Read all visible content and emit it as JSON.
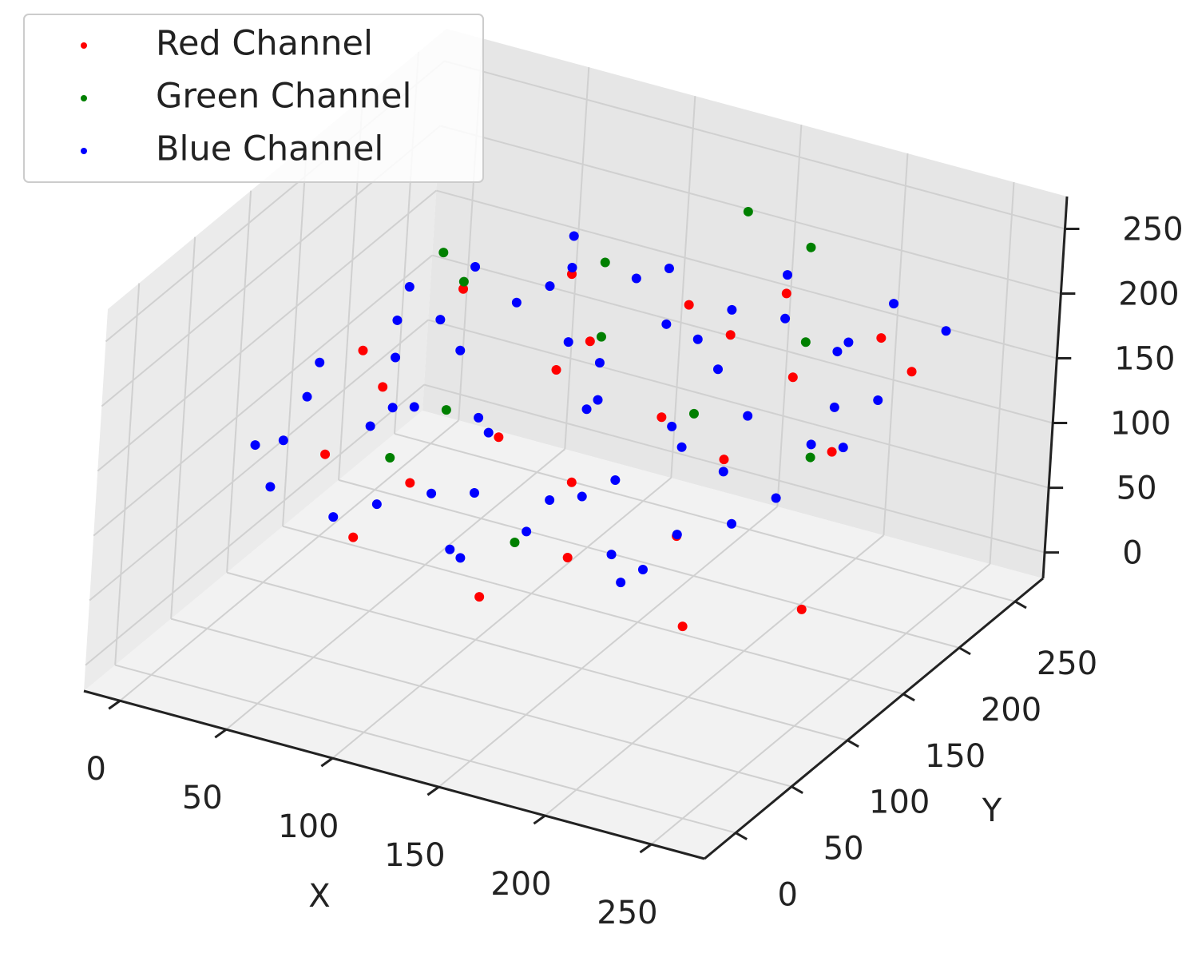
{
  "chart_data": {
    "type": "scatter3d",
    "xlabel": "X",
    "ylabel": "Y",
    "xlim": [
      -17,
      275
    ],
    "ylim": [
      -28,
      275
    ],
    "zlim": [
      -20,
      275
    ],
    "xticks": [
      0,
      50,
      100,
      150,
      200,
      250
    ],
    "yticks": [
      0,
      50,
      100,
      150,
      200,
      250
    ],
    "zticks": [
      0,
      50,
      100,
      150,
      200,
      250
    ],
    "grid": true,
    "legend": "upper left",
    "series": [
      {
        "name": "Red Channel",
        "color": "#ff0000",
        "x": [
          15,
          25,
          40,
          60,
          80,
          95,
          110,
          125,
          140,
          150,
          160,
          175,
          190,
          200,
          215,
          230,
          245,
          35,
          70,
          105,
          135,
          165,
          195,
          225,
          250
        ],
        "y": [
          150,
          100,
          190,
          60,
          210,
          120,
          170,
          50,
          200,
          80,
          140,
          220,
          100,
          180,
          60,
          160,
          200,
          130,
          90,
          150,
          110,
          190,
          130,
          210,
          100
        ],
        "z": [
          130,
          90,
          160,
          70,
          175,
          120,
          165,
          60,
          185,
          80,
          150,
          195,
          100,
          170,
          70,
          140,
          180,
          125,
          95,
          155,
          110,
          180,
          140,
          190,
          70
        ]
      },
      {
        "name": "Green Channel",
        "color": "#008000",
        "x": [
          20,
          45,
          70,
          100,
          130,
          150,
          170,
          185,
          200,
          230,
          60,
          120
        ],
        "y": [
          210,
          180,
          120,
          200,
          70,
          230,
          150,
          220,
          190,
          140,
          90,
          160
        ],
        "z": [
          165,
          175,
          130,
          200,
          90,
          240,
          150,
          235,
          190,
          150,
          110,
          180
        ]
      },
      {
        "name": "Blue Channel",
        "color": "#0000ff",
        "x": [
          10,
          12,
          20,
          30,
          40,
          50,
          60,
          70,
          80,
          90,
          100,
          110,
          120,
          130,
          140,
          150,
          160,
          170,
          180,
          190,
          200,
          210,
          220,
          230,
          240,
          20,
          40,
          60,
          80,
          100,
          120,
          140,
          160,
          180,
          200,
          220,
          30,
          50,
          70,
          90,
          110,
          130,
          150,
          170,
          190,
          210,
          230,
          15,
          45,
          75,
          105,
          135,
          165,
          195,
          225,
          245,
          60,
          120,
          180,
          240
        ],
        "y": [
          120,
          60,
          180,
          40,
          200,
          90,
          150,
          60,
          210,
          110,
          170,
          50,
          220,
          130,
          80,
          190,
          100,
          230,
          60,
          160,
          120,
          210,
          90,
          140,
          180,
          70,
          130,
          40,
          190,
          100,
          160,
          60,
          200,
          120,
          80,
          230,
          150,
          110,
          180,
          70,
          210,
          140,
          90,
          170,
          50,
          200,
          110,
          100,
          160,
          220,
          80,
          190,
          140,
          60,
          170,
          230,
          110,
          40,
          210,
          150
        ],
        "z": [
          140,
          120,
          160,
          110,
          170,
          130,
          150,
          100,
          180,
          140,
          160,
          90,
          190,
          150,
          120,
          170,
          130,
          200,
          110,
          150,
          140,
          180,
          130,
          160,
          170,
          120,
          150,
          100,
          180,
          140,
          160,
          110,
          190,
          150,
          120,
          200,
          160,
          130,
          170,
          110,
          185,
          150,
          120,
          170,
          100,
          180,
          140,
          130,
          160,
          195,
          110,
          175,
          145,
          105,
          165,
          190,
          135,
          95,
          185,
          155
        ]
      }
    ]
  }
}
